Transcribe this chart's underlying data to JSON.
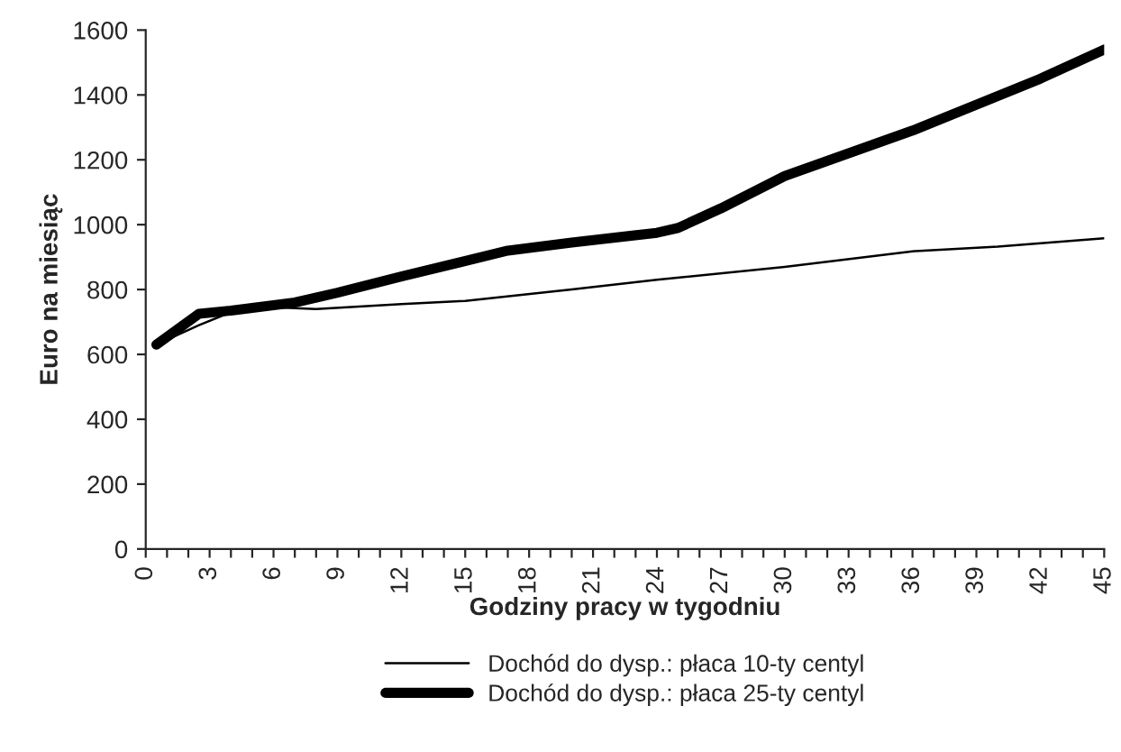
{
  "chart_data": {
    "type": "line",
    "xlabel": "Godziny pracy w tygodniu",
    "ylabel": "Euro na miesiąc",
    "series": [
      {
        "name": "Dochód do dysp.: płaca 10-ty centyl",
        "color": "#000000",
        "x": [
          0.5,
          2.5,
          4,
          6,
          8,
          12,
          15,
          20,
          24,
          30,
          36,
          40,
          45
        ],
        "values": [
          630,
          690,
          730,
          745,
          740,
          755,
          765,
          800,
          830,
          870,
          918,
          932,
          958
        ]
      },
      {
        "name": "Dochód do dysp.: płaca 25-ty centyl",
        "color": "#000000",
        "x": [
          0.5,
          2.5,
          4,
          7,
          9,
          12,
          17,
          20,
          24,
          25,
          27,
          30,
          33,
          36,
          39,
          42,
          45
        ],
        "values": [
          630,
          725,
          735,
          760,
          790,
          840,
          920,
          945,
          975,
          990,
          1050,
          1150,
          1220,
          1290,
          1370,
          1450,
          1540
        ]
      }
    ],
    "xlim": [
      0,
      45
    ],
    "ylim": [
      0,
      1600
    ],
    "yticks": [
      0,
      200,
      400,
      600,
      800,
      1000,
      1200,
      1400,
      1600
    ],
    "xticks": [
      0,
      {
        "value": 1,
        "label": null
      },
      {
        "value": 2,
        "label": null
      },
      3,
      {
        "value": 4,
        "label": null
      },
      {
        "value": 5,
        "label": null
      },
      6,
      {
        "value": 7,
        "label": null
      },
      {
        "value": 8,
        "label": null
      },
      9,
      {
        "value": 10,
        "label": null
      },
      {
        "value": 11,
        "label": null
      },
      12,
      {
        "value": 13,
        "label": null
      },
      {
        "value": 14,
        "label": null
      },
      15,
      {
        "value": 16,
        "label": null
      },
      {
        "value": 17,
        "label": null
      },
      18,
      {
        "value": 19,
        "label": null
      },
      {
        "value": 20,
        "label": null
      },
      21,
      {
        "value": 22,
        "label": null
      },
      {
        "value": 23,
        "label": null
      },
      24,
      {
        "value": 25,
        "label": null
      },
      {
        "value": 26,
        "label": null
      },
      27,
      {
        "value": 28,
        "label": null
      },
      {
        "value": 29,
        "label": null
      },
      30,
      {
        "value": 31,
        "label": null
      },
      {
        "value": 32,
        "label": null
      },
      33,
      {
        "value": 34,
        "label": null
      },
      {
        "value": 35,
        "label": null
      },
      36,
      {
        "value": 37,
        "label": null
      },
      {
        "value": 38,
        "label": null
      },
      39,
      {
        "value": 40,
        "label": null
      },
      {
        "value": 41,
        "label": null
      },
      42,
      {
        "value": 43,
        "label": null
      },
      {
        "value": 44,
        "label": null
      },
      45
    ],
    "grid": false,
    "legend": "bottom",
    "marker": "none",
    "line_style": "solid"
  }
}
